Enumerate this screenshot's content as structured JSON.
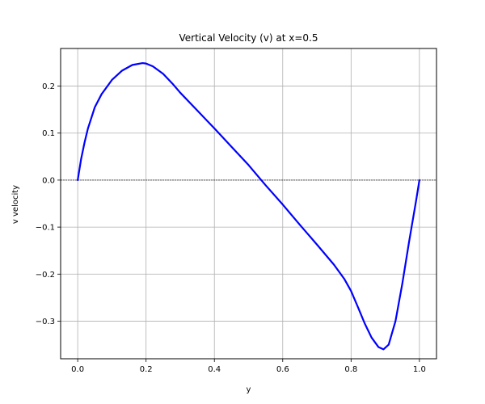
{
  "chart_data": {
    "type": "line",
    "title": "Vertical Velocity (v) at x=0.5",
    "xlabel": "y",
    "ylabel": "v velocity",
    "xlim": [
      -0.05,
      1.05
    ],
    "ylim": [
      -0.38,
      0.28
    ],
    "grid": true,
    "legend": "none",
    "xticks": [
      0.0,
      0.2,
      0.4,
      0.6,
      0.8,
      1.0
    ],
    "xtick_labels": [
      "0.0",
      "0.2",
      "0.4",
      "0.6",
      "0.8",
      "1.0"
    ],
    "yticks": [
      -0.3,
      -0.2,
      -0.1,
      0.0,
      0.1,
      0.2
    ],
    "ytick_labels": [
      "−0.3",
      "−0.2",
      "−0.1",
      "0.0",
      "0.1",
      "0.2"
    ],
    "zero_line": {
      "y": 0.0,
      "color": "#000000",
      "style": "dashed"
    },
    "series": [
      {
        "color": "#0000ff",
        "x": [
          0.0,
          0.01,
          0.02,
          0.03,
          0.05,
          0.07,
          0.1,
          0.13,
          0.16,
          0.19,
          0.2,
          0.22,
          0.25,
          0.28,
          0.3,
          0.35,
          0.4,
          0.45,
          0.5,
          0.55,
          0.6,
          0.65,
          0.7,
          0.75,
          0.78,
          0.8,
          0.82,
          0.84,
          0.86,
          0.88,
          0.895,
          0.91,
          0.93,
          0.95,
          0.97,
          0.99,
          1.0
        ],
        "y": [
          0.0,
          0.045,
          0.08,
          0.11,
          0.155,
          0.183,
          0.213,
          0.233,
          0.245,
          0.249,
          0.248,
          0.242,
          0.226,
          0.203,
          0.186,
          0.148,
          0.11,
          0.071,
          0.032,
          -0.011,
          -0.052,
          -0.095,
          -0.137,
          -0.18,
          -0.21,
          -0.236,
          -0.27,
          -0.305,
          -0.335,
          -0.355,
          -0.36,
          -0.35,
          -0.3,
          -0.22,
          -0.13,
          -0.045,
          0.0
        ]
      }
    ]
  }
}
